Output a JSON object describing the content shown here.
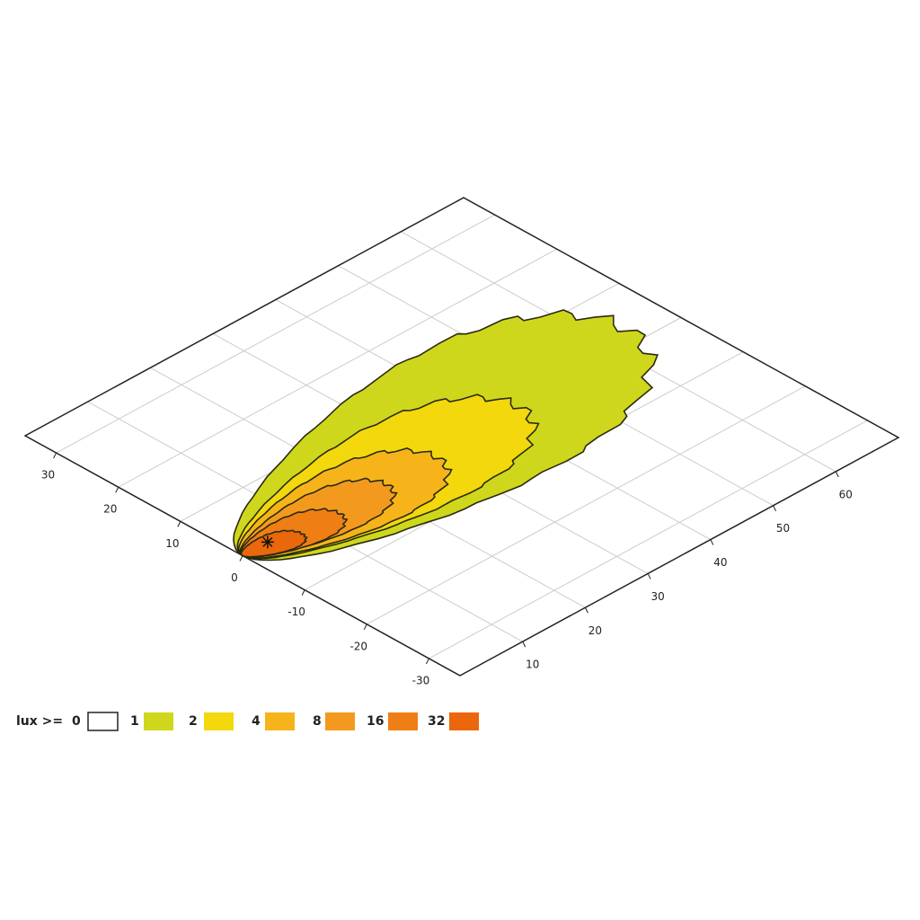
{
  "chart_data": {
    "type": "contour",
    "xlim": [
      0,
      70
    ],
    "ylim": [
      -35,
      35
    ],
    "xticks": [
      10,
      20,
      30,
      40,
      50,
      60
    ],
    "yticks": [
      -30,
      -20,
      -10,
      0,
      10,
      20,
      30
    ],
    "grid": true,
    "legend_title": "lux >=",
    "levels": [
      0,
      1,
      2,
      4,
      8,
      16,
      32
    ],
    "colors": [
      "#ffffff",
      "#cfd71c",
      "#f2d80c",
      "#f6b41a",
      "#f39a1e",
      "#ef7e14",
      "#ea670c"
    ]
  }
}
